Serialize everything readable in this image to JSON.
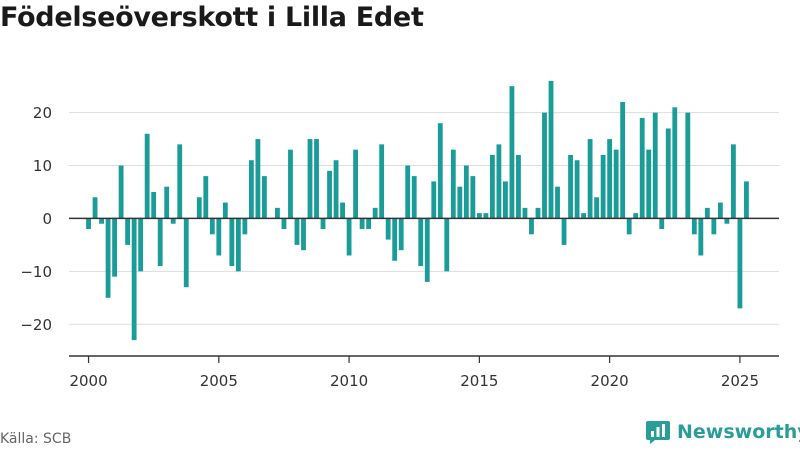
{
  "title": "Födelseöverskott i Lilla Edet",
  "source": "Källa: SCB",
  "brand": {
    "name": "Newsworthy",
    "icon": "newsworthy-logo-icon"
  },
  "colors": {
    "bar": "#1a9c98",
    "grid": "#dddddd",
    "zero_line": "#333333",
    "axis": "#333333",
    "text": "#333333",
    "brand": "#2a9d99"
  },
  "chart_data": {
    "type": "bar",
    "title": "Födelseöverskott i Lilla Edet",
    "xlabel": "",
    "ylabel": "",
    "x_start": 2000,
    "periods_per_year": 4,
    "xlim": [
      1999.25,
      2026.5
    ],
    "ylim": [
      -26,
      29
    ],
    "y_ticks": [
      -20,
      -10,
      0,
      10,
      20
    ],
    "x_ticks": [
      2000,
      2005,
      2010,
      2015,
      2020,
      2025
    ],
    "grid": true,
    "legend": "none",
    "values": [
      -2,
      4,
      -1,
      -15,
      -11,
      10,
      -5,
      -23,
      -10,
      16,
      5,
      -9,
      6,
      -1,
      14,
      -13,
      0,
      4,
      8,
      -3,
      -7,
      3,
      -9,
      -10,
      -3,
      11,
      15,
      8,
      0,
      2,
      -2,
      13,
      -5,
      -6,
      15,
      15,
      -2,
      9,
      11,
      3,
      -7,
      13,
      -2,
      -2,
      2,
      14,
      -4,
      -8,
      -6,
      10,
      8,
      -9,
      -12,
      7,
      18,
      -10,
      13,
      6,
      10,
      8,
      1,
      1,
      12,
      14,
      7,
      25,
      12,
      2,
      -3,
      2,
      20,
      26,
      6,
      -5,
      12,
      11,
      1,
      15,
      4,
      12,
      15,
      13,
      22,
      -3,
      1,
      19,
      13,
      20,
      -2,
      17,
      21,
      0,
      20,
      -3,
      -7,
      2,
      -3,
      3,
      -1,
      14,
      -17,
      7
    ]
  }
}
